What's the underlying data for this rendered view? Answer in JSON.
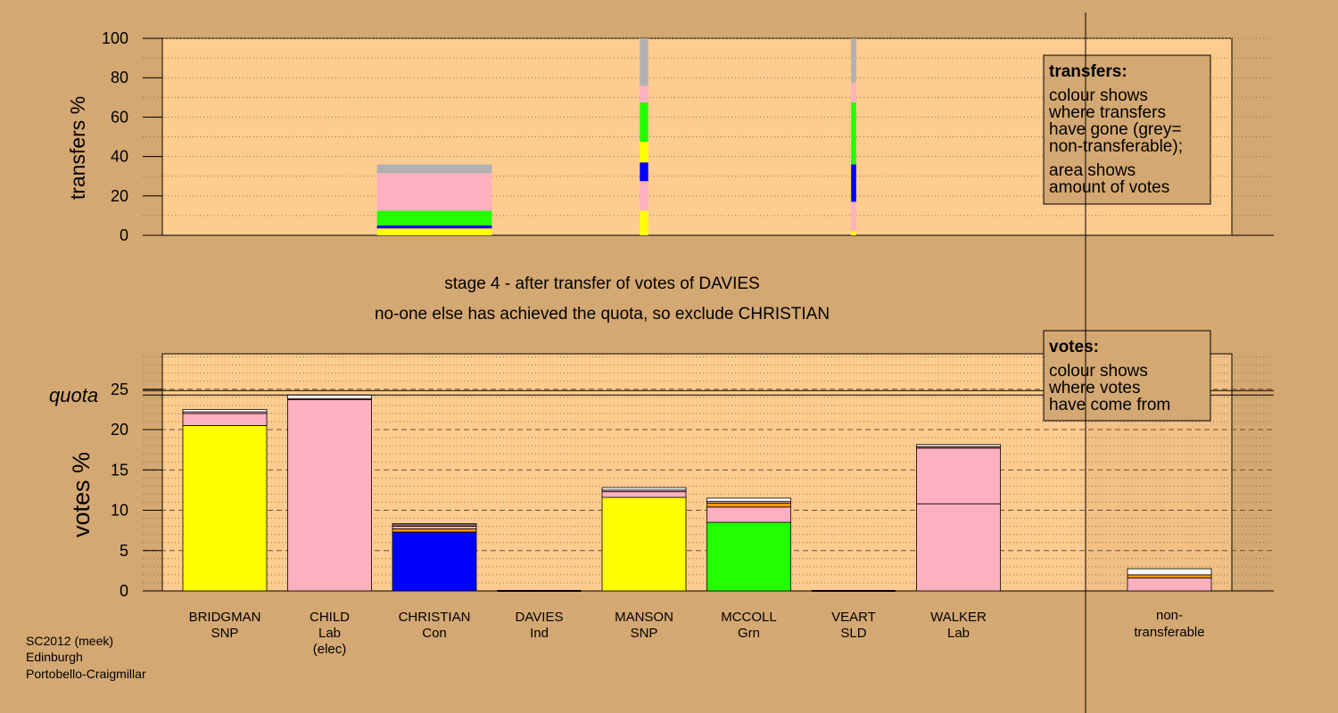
{
  "colors": {
    "background": "#D4A872",
    "plot_area": "#FFCC90",
    "SNP": "#FFFF00",
    "Lab": "#FFB0C0",
    "Con": "#0000FF",
    "Grn": "#22FF00",
    "SLD": "#FF9900",
    "Ind": "#FFFFFF",
    "nontransferable": "#B0B0B0",
    "orange": "#FF9900",
    "brown": "#C88850"
  },
  "caption": {
    "line1": "stage 4 - after transfer of votes of DAVIES",
    "line2": "no-one else has achieved the quota, so exclude CHRISTIAN"
  },
  "footer": {
    "line1": "SC2012 (meek)",
    "line2": "Edinburgh",
    "line3": "Portobello-Craigmillar"
  },
  "legend_transfers": {
    "title": "transfers:",
    "lines_a": [
      "colour shows",
      "where transfers",
      "have gone (grey=",
      "non-transferable);"
    ],
    "lines_b": [
      "area shows",
      "amount of votes"
    ]
  },
  "legend_votes": {
    "title": "votes:",
    "lines": [
      "colour shows",
      "where votes",
      "have come from"
    ]
  },
  "quota_label": "quota",
  "chart_data": [
    {
      "type": "bar",
      "ylabel": "transfers %",
      "ylim": [
        0,
        100
      ],
      "yticks": [
        0,
        20,
        40,
        60,
        80,
        100
      ],
      "grid": "dotted",
      "categories": [
        "BRIDGMAN",
        "CHILD",
        "CHRISTIAN",
        "DAVIES",
        "MANSON",
        "MCCOLL",
        "VEART",
        "WALKER"
      ],
      "bars": [
        {
          "candidate": "CHRISTIAN",
          "width_fraction": 1.0,
          "segments": [
            {
              "party": "SNP",
              "value": 3.5
            },
            {
              "party": "Con",
              "value": 1.5
            },
            {
              "party": "Grn",
              "value": 2.5
            },
            {
              "party": "Grn",
              "value": 5.0
            },
            {
              "party": "Lab",
              "value": 1.0
            },
            {
              "party": "Lab",
              "value": 18.0
            },
            {
              "party": "nontransferable",
              "value": 4.5
            }
          ]
        },
        {
          "candidate": "MANSON",
          "width_fraction": 0.1,
          "segments": [
            {
              "party": "SNP",
              "value": 12.5
            },
            {
              "party": "Lab",
              "value": 15.0
            },
            {
              "party": "Con",
              "value": 9.5
            },
            {
              "party": "SNP",
              "value": 10.5
            },
            {
              "party": "Grn",
              "value": 20.0
            },
            {
              "party": "Lab",
              "value": 8.5
            },
            {
              "party": "nontransferable",
              "value": 24.0
            }
          ]
        },
        {
          "candidate": "VEART",
          "width_fraction": 0.06,
          "segments": [
            {
              "party": "SNP",
              "value": 2.0
            },
            {
              "party": "Lab",
              "value": 15.0
            },
            {
              "party": "Con",
              "value": 19.0
            },
            {
              "party": "Grn",
              "value": 2.5
            },
            {
              "party": "Grn",
              "value": 29.0
            },
            {
              "party": "Lab",
              "value": 10.0
            },
            {
              "party": "nontransferable",
              "value": 22.5
            }
          ]
        }
      ]
    },
    {
      "type": "bar",
      "ylabel": "votes %",
      "ylim": [
        0,
        30
      ],
      "yticks": [
        0,
        5,
        10,
        15,
        20,
        25
      ],
      "quota": 24.5,
      "grid": "dashed",
      "candidates": [
        {
          "name": "BRIDGMAN",
          "party": "SNP",
          "note": "",
          "segments": [
            {
              "party": "SNP",
              "value": 20.5
            },
            {
              "party": "Lab",
              "value": 1.5
            },
            {
              "party": "Lab",
              "value": 0.2
            },
            {
              "party": "Ind",
              "value": 0.3
            }
          ]
        },
        {
          "name": "CHILD",
          "party": "Lab",
          "note": "(elec)",
          "segments": [
            {
              "party": "Lab",
              "value": 23.7
            },
            {
              "party": "brown",
              "value": 0.15
            },
            {
              "party": "Ind",
              "value": 0.45
            }
          ]
        },
        {
          "name": "CHRISTIAN",
          "party": "Con",
          "note": "",
          "segments": [
            {
              "party": "Con",
              "value": 7.3
            },
            {
              "party": "orange",
              "value": 0.4
            },
            {
              "party": "Lab",
              "value": 0.3
            },
            {
              "party": "brown",
              "value": 0.2
            },
            {
              "party": "Ind",
              "value": 0.15
            }
          ]
        },
        {
          "name": "DAVIES",
          "party": "Ind",
          "note": "",
          "segments": []
        },
        {
          "name": "MANSON",
          "party": "SNP",
          "note": "",
          "segments": [
            {
              "party": "SNP",
              "value": 11.6
            },
            {
              "party": "Lab",
              "value": 0.7
            },
            {
              "party": "Lab",
              "value": 0.2
            },
            {
              "party": "Ind",
              "value": 0.3
            }
          ]
        },
        {
          "name": "MCCOLL",
          "party": "Grn",
          "note": "",
          "segments": [
            {
              "party": "Grn",
              "value": 8.5
            },
            {
              "party": "Lab",
              "value": 1.9
            },
            {
              "party": "orange",
              "value": 0.5
            },
            {
              "party": "Lab",
              "value": 0.2
            },
            {
              "party": "Ind",
              "value": 0.4
            }
          ]
        },
        {
          "name": "VEART",
          "party": "SLD",
          "note": "",
          "segments": []
        },
        {
          "name": "WALKER",
          "party": "Lab",
          "note": "",
          "segments": [
            {
              "party": "Lab",
              "value": 10.8
            },
            {
              "party": "Lab",
              "value": 6.9
            },
            {
              "party": "brown",
              "value": 0.2
            },
            {
              "party": "Ind",
              "value": 0.25
            }
          ]
        }
      ],
      "nontransferable": {
        "label": [
          "non-",
          "transferable"
        ],
        "segments": [
          {
            "party": "Lab",
            "value": 1.6
          },
          {
            "party": "orange",
            "value": 0.4
          },
          {
            "party": "Ind",
            "value": 0.75
          }
        ]
      }
    }
  ]
}
